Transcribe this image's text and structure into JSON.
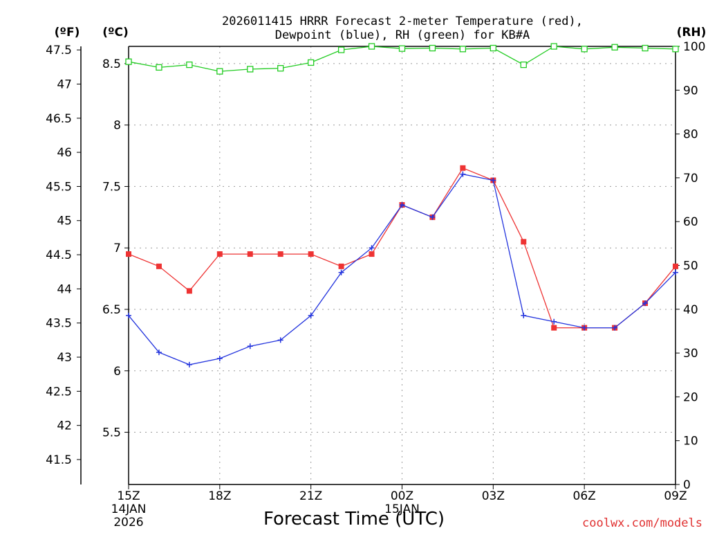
{
  "chart_data": {
    "type": "line",
    "title_line1": "2026011415 HRRR Forecast 2-meter Temperature (red),",
    "title_line2": "Dewpoint (blue), RH (green) for KB#A",
    "xlabel": "Forecast Time (UTC)",
    "credit": "coolwx.com/models",
    "unit_f": "(ºF)",
    "unit_c": "(ºC)",
    "unit_rh": "(RH)",
    "x_hours": [
      15,
      16,
      17,
      18,
      19,
      20,
      21,
      22,
      23,
      24,
      25,
      26,
      27,
      28,
      29,
      30,
      31,
      32,
      33
    ],
    "xlim": [
      15,
      33
    ],
    "x_ticks": [
      {
        "hour": 15,
        "label": "15Z",
        "sub1": "14JAN",
        "sub2": "2026"
      },
      {
        "hour": 18,
        "label": "18Z",
        "sub1": "",
        "sub2": ""
      },
      {
        "hour": 21,
        "label": "21Z",
        "sub1": "",
        "sub2": ""
      },
      {
        "hour": 24,
        "label": "00Z",
        "sub1": "15JAN",
        "sub2": ""
      },
      {
        "hour": 27,
        "label": "03Z",
        "sub1": "",
        "sub2": ""
      },
      {
        "hour": 30,
        "label": "06Z",
        "sub1": "",
        "sub2": ""
      },
      {
        "hour": 33,
        "label": "09Z",
        "sub1": "",
        "sub2": ""
      }
    ],
    "c_lim": [
      5.075,
      8.64
    ],
    "c_ticks": [
      "5.5",
      "6",
      "6.5",
      "7",
      "7.5",
      "8",
      "8.5"
    ],
    "f_ticks": [
      "41.5",
      "42",
      "42.5",
      "43",
      "43.5",
      "44",
      "44.5",
      "45",
      "45.5",
      "46",
      "46.5",
      "47",
      "47.5"
    ],
    "rh_lim": [
      0,
      100
    ],
    "rh_ticks": [
      "0",
      "10",
      "20",
      "30",
      "40",
      "50",
      "60",
      "70",
      "80",
      "90",
      "100"
    ],
    "series": [
      {
        "name": "Temperature",
        "color": "#ee3333",
        "marker": "square-filled",
        "values": [
          6.95,
          6.85,
          6.65,
          6.95,
          6.95,
          6.95,
          6.95,
          6.85,
          6.95,
          7.35,
          7.25,
          7.65,
          7.55,
          7.05,
          6.35,
          6.35,
          6.35,
          6.55,
          6.85
        ]
      },
      {
        "name": "Dewpoint",
        "color": "#2233dd",
        "marker": "plus",
        "values": [
          6.45,
          6.15,
          6.05,
          6.1,
          6.2,
          6.25,
          6.45,
          6.8,
          7.0,
          7.35,
          7.25,
          7.6,
          7.55,
          6.45,
          6.4,
          6.35,
          6.35,
          6.55,
          6.8
        ]
      },
      {
        "name": "RH",
        "color": "#22cc22",
        "marker": "square-open",
        "values": [
          96.5,
          95.2,
          95.8,
          94.3,
          94.8,
          95.0,
          96.3,
          99.2,
          100.0,
          99.5,
          99.6,
          99.4,
          99.6,
          95.8,
          100.0,
          99.4,
          99.8,
          99.6,
          99.4
        ]
      }
    ]
  }
}
